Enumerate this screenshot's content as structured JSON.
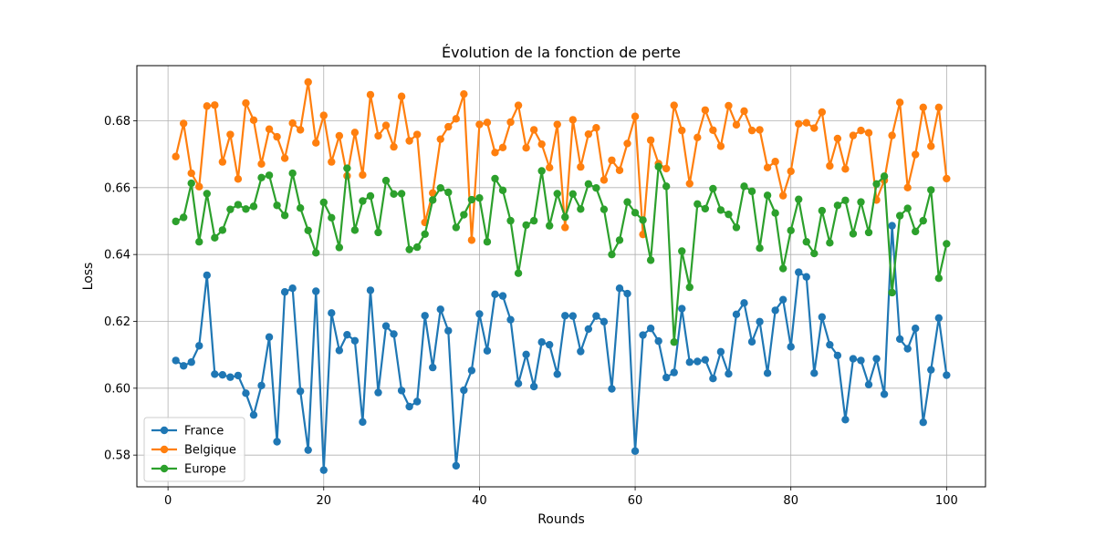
{
  "chart_data": {
    "type": "line",
    "title": "Évolution de la fonction de perte",
    "xlabel": "Rounds",
    "ylabel": "Loss",
    "xlim": [
      -4,
      105
    ],
    "ylim": [
      0.5705,
      0.6965
    ],
    "xticks": [
      0,
      20,
      40,
      60,
      80,
      100
    ],
    "yticks": [
      0.58,
      0.6,
      0.62,
      0.64,
      0.66,
      0.68
    ],
    "ytick_labels": [
      "0.58",
      "0.60",
      "0.62",
      "0.64",
      "0.66",
      "0.68"
    ],
    "grid": true,
    "legend_position": "lower-left",
    "x": [
      1,
      2,
      3,
      4,
      5,
      6,
      7,
      8,
      9,
      10,
      11,
      12,
      13,
      14,
      15,
      16,
      17,
      18,
      19,
      20,
      21,
      22,
      23,
      24,
      25,
      26,
      27,
      28,
      29,
      30,
      31,
      32,
      33,
      34,
      35,
      36,
      37,
      38,
      39,
      40,
      41,
      42,
      43,
      44,
      45,
      46,
      47,
      48,
      49,
      50,
      51,
      52,
      53,
      54,
      55,
      56,
      57,
      58,
      59,
      60,
      61,
      62,
      63,
      64,
      65,
      66,
      67,
      68,
      69,
      70,
      71,
      72,
      73,
      74,
      75,
      76,
      77,
      78,
      79,
      80,
      81,
      82,
      83,
      84,
      85,
      86,
      87,
      88,
      89,
      90,
      91,
      92,
      93,
      94,
      95,
      96,
      97,
      98,
      99,
      100
    ],
    "series": [
      {
        "name": "France",
        "color": "#1f77b4",
        "values": [
          0.6083,
          0.6067,
          0.6078,
          0.6127,
          0.6338,
          0.6042,
          0.604,
          0.6033,
          0.6038,
          0.5985,
          0.592,
          0.6008,
          0.6153,
          0.584,
          0.6288,
          0.6299,
          0.5991,
          0.5815,
          0.629,
          0.5755,
          0.6225,
          0.6113,
          0.616,
          0.6142,
          0.5899,
          0.6293,
          0.5987,
          0.6186,
          0.6162,
          0.5993,
          0.5945,
          0.596,
          0.6217,
          0.6062,
          0.6236,
          0.6172,
          0.5768,
          0.5994,
          0.6053,
          0.6222,
          0.6112,
          0.6281,
          0.6276,
          0.6205,
          0.6014,
          0.6101,
          0.6005,
          0.6138,
          0.613,
          0.6042,
          0.6217,
          0.6216,
          0.611,
          0.6177,
          0.6216,
          0.6199,
          0.5998,
          0.6299,
          0.6283,
          0.5812,
          0.6159,
          0.6179,
          0.6141,
          0.6032,
          0.6047,
          0.6238,
          0.6078,
          0.608,
          0.6085,
          0.6029,
          0.6109,
          0.6043,
          0.6221,
          0.6255,
          0.6139,
          0.6199,
          0.6045,
          0.6233,
          0.6265,
          0.6124,
          0.6347,
          0.6333,
          0.6045,
          0.6213,
          0.613,
          0.6098,
          0.5906,
          0.6088,
          0.6083,
          0.6011,
          0.6088,
          0.5982,
          0.6486,
          0.6147,
          0.6118,
          0.6179,
          0.5898,
          0.6055,
          0.621,
          0.6039
        ]
      },
      {
        "name": "Belgique",
        "color": "#ff7f0e",
        "values": [
          0.6693,
          0.6792,
          0.6643,
          0.6603,
          0.6844,
          0.6847,
          0.6677,
          0.6759,
          0.6626,
          0.6853,
          0.6802,
          0.6671,
          0.6775,
          0.6752,
          0.6688,
          0.6793,
          0.6773,
          0.6916,
          0.6734,
          0.6816,
          0.6677,
          0.6755,
          0.6635,
          0.6765,
          0.6638,
          0.6878,
          0.6755,
          0.6786,
          0.6722,
          0.6873,
          0.674,
          0.6759,
          0.6496,
          0.6584,
          0.6745,
          0.6782,
          0.6806,
          0.688,
          0.6443,
          0.6789,
          0.6795,
          0.6705,
          0.672,
          0.6796,
          0.6846,
          0.6719,
          0.6773,
          0.673,
          0.666,
          0.6789,
          0.6481,
          0.6803,
          0.6662,
          0.676,
          0.6779,
          0.6623,
          0.6682,
          0.6652,
          0.6732,
          0.6813,
          0.646,
          0.6742,
          0.6672,
          0.6657,
          0.6846,
          0.6771,
          0.6612,
          0.675,
          0.6832,
          0.6772,
          0.6724,
          0.6845,
          0.6788,
          0.6829,
          0.6771,
          0.6773,
          0.666,
          0.6678,
          0.6576,
          0.6649,
          0.6791,
          0.6794,
          0.6778,
          0.6826,
          0.6665,
          0.6747,
          0.6656,
          0.6756,
          0.6771,
          0.6764,
          0.6563,
          0.6622,
          0.6756,
          0.6855,
          0.66,
          0.6699,
          0.684,
          0.6724,
          0.684,
          0.6627
        ]
      },
      {
        "name": "Europe",
        "color": "#2ca02c",
        "values": [
          0.6499,
          0.6511,
          0.6613,
          0.6438,
          0.6582,
          0.645,
          0.6473,
          0.6535,
          0.6549,
          0.6536,
          0.6544,
          0.663,
          0.6637,
          0.6547,
          0.6517,
          0.6643,
          0.6539,
          0.6472,
          0.6405,
          0.6556,
          0.651,
          0.6421,
          0.6658,
          0.6473,
          0.656,
          0.6575,
          0.6466,
          0.6621,
          0.6581,
          0.6582,
          0.6415,
          0.6422,
          0.6461,
          0.6563,
          0.6599,
          0.6586,
          0.6481,
          0.6519,
          0.6564,
          0.6569,
          0.6438,
          0.6627,
          0.6592,
          0.6501,
          0.6344,
          0.6488,
          0.6501,
          0.665,
          0.6486,
          0.6582,
          0.6512,
          0.6581,
          0.6536,
          0.6611,
          0.6599,
          0.6535,
          0.64,
          0.6443,
          0.6557,
          0.6525,
          0.6503,
          0.6383,
          0.6663,
          0.6604,
          0.6138,
          0.641,
          0.6302,
          0.6551,
          0.6537,
          0.6597,
          0.6533,
          0.652,
          0.6481,
          0.6604,
          0.6589,
          0.6419,
          0.6577,
          0.6524,
          0.6358,
          0.6472,
          0.6565,
          0.6438,
          0.6403,
          0.6531,
          0.6435,
          0.6547,
          0.6562,
          0.6462,
          0.6557,
          0.6466,
          0.6611,
          0.6634,
          0.6286,
          0.6516,
          0.6538,
          0.6469,
          0.6501,
          0.6593,
          0.6329,
          0.6432
        ]
      }
    ]
  }
}
